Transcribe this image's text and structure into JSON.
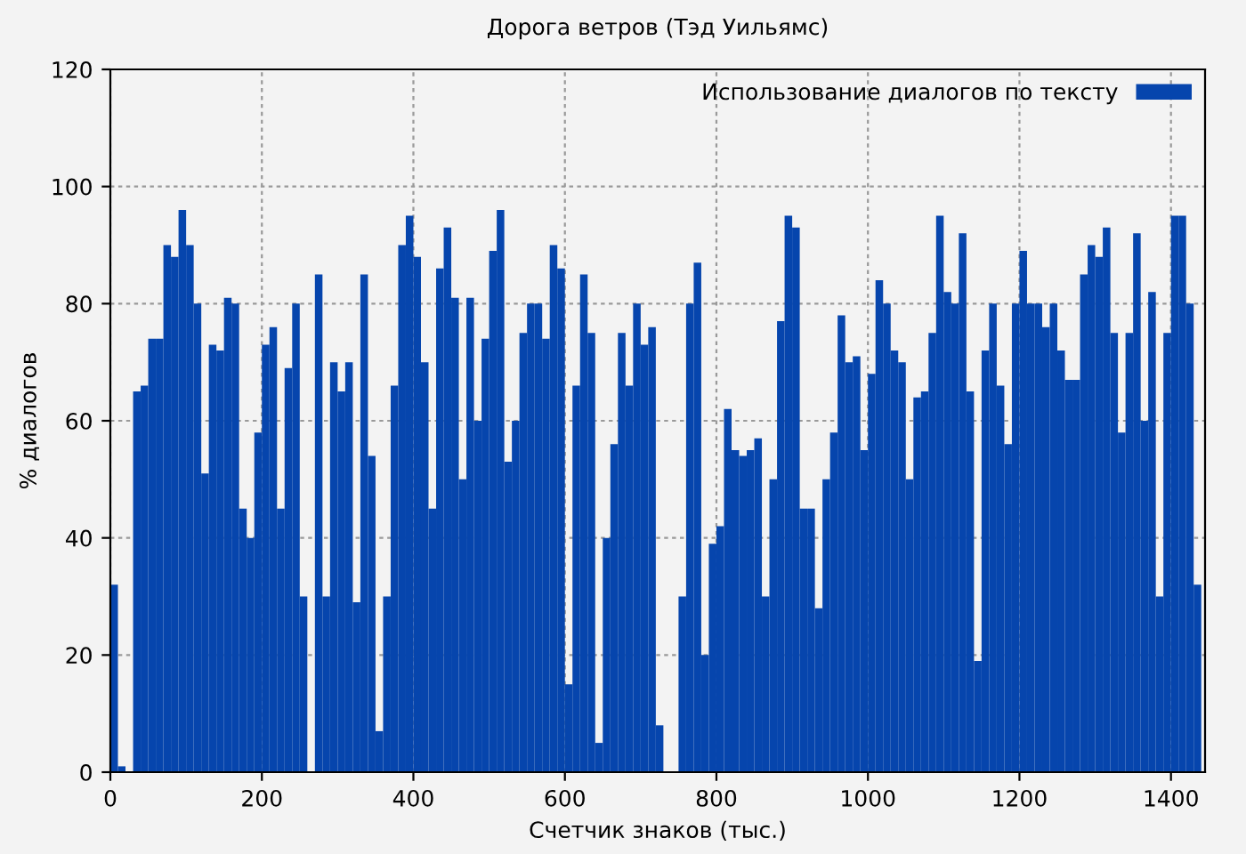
{
  "chart_data": {
    "type": "bar",
    "title": "Дорога ветров (Тэд Уильямс)",
    "xlabel": "Счетчик знаков (тыс.)",
    "ylabel": "% диалогов",
    "x": [
      5,
      15,
      25,
      35,
      45,
      55,
      65,
      75,
      85,
      95,
      105,
      115,
      125,
      135,
      145,
      155,
      165,
      175,
      185,
      195,
      205,
      215,
      225,
      235,
      245,
      255,
      265,
      275,
      285,
      295,
      305,
      315,
      325,
      335,
      345,
      355,
      365,
      375,
      385,
      395,
      405,
      415,
      425,
      435,
      445,
      455,
      465,
      475,
      485,
      495,
      505,
      515,
      525,
      535,
      545,
      555,
      565,
      575,
      585,
      595,
      605,
      615,
      625,
      635,
      645,
      655,
      665,
      675,
      685,
      695,
      705,
      715,
      725,
      735,
      745,
      755,
      765,
      775,
      785,
      795,
      805,
      815,
      825,
      835,
      845,
      855,
      865,
      875,
      885,
      895,
      905,
      915,
      925,
      935,
      945,
      955,
      965,
      975,
      985,
      995,
      1005,
      1015,
      1025,
      1035,
      1045,
      1055,
      1065,
      1075,
      1085,
      1095,
      1105,
      1115,
      1125,
      1135,
      1145,
      1155,
      1165,
      1175,
      1185,
      1195,
      1205,
      1215,
      1225,
      1235,
      1245,
      1255,
      1265,
      1275,
      1285,
      1295,
      1305,
      1315,
      1325,
      1335,
      1345,
      1355,
      1365,
      1375,
      1385,
      1395,
      1405,
      1415,
      1425,
      1435
    ],
    "series": [
      {
        "name": "Использование диалогов по тексту",
        "color": "#0645ad",
        "values": [
          32,
          1,
          0,
          65,
          66,
          74,
          74,
          90,
          88,
          96,
          90,
          80,
          51,
          73,
          72,
          81,
          80,
          45,
          40,
          58,
          73,
          76,
          45,
          69,
          80,
          30,
          0,
          85,
          30,
          70,
          65,
          70,
          29,
          85,
          54,
          7,
          30,
          66,
          90,
          95,
          88,
          70,
          45,
          86,
          93,
          81,
          50,
          81,
          60,
          74,
          89,
          96,
          53,
          60,
          75,
          80,
          80,
          74,
          90,
          86,
          15,
          66,
          85,
          75,
          5,
          40,
          56,
          75,
          66,
          80,
          73,
          76,
          8,
          0,
          0,
          30,
          80,
          87,
          20,
          39,
          42,
          62,
          55,
          54,
          55,
          57,
          30,
          50,
          77,
          95,
          93,
          45,
          45,
          28,
          50,
          58,
          78,
          70,
          71,
          55,
          68,
          84,
          80,
          72,
          70,
          50,
          64,
          65,
          75,
          95,
          82,
          80,
          92,
          65,
          19,
          72,
          80,
          66,
          56,
          80,
          89,
          80,
          80,
          76,
          80,
          72,
          67,
          67,
          85,
          90,
          88,
          93,
          75,
          58,
          75,
          92,
          60,
          82,
          30,
          75,
          95,
          95,
          80,
          32
        ]
      }
    ],
    "xlim": [
      0,
      1445
    ],
    "xticks": [
      0,
      200,
      400,
      600,
      800,
      1000,
      1200,
      1400
    ],
    "ylim": [
      0,
      120
    ],
    "yticks": [
      0,
      20,
      40,
      60,
      80,
      100,
      120
    ],
    "grid": true,
    "legend": "top right"
  }
}
